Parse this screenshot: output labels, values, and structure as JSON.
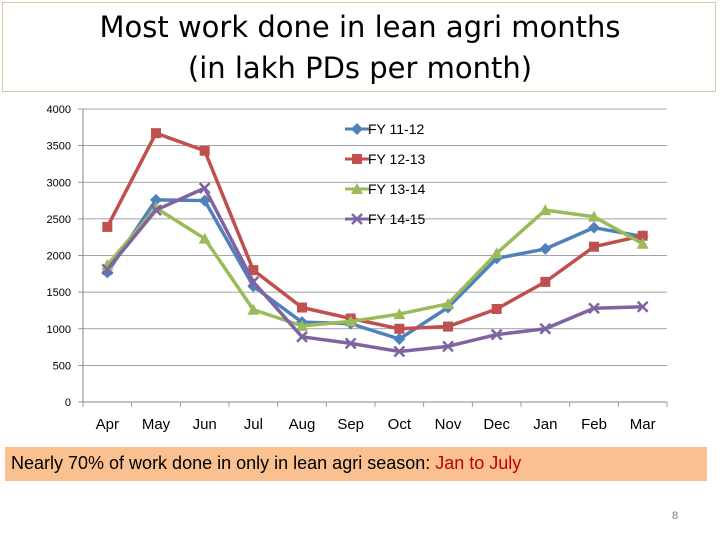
{
  "title": {
    "line1": "Most work done in lean agri months",
    "line2": "(in lakh PDs per month)"
  },
  "chart_data": {
    "type": "line",
    "title": "Most work done in lean agri months (in lakh PDs per month)",
    "xlabel": "",
    "ylabel": "",
    "categories": [
      "Apr",
      "May",
      "Jun",
      "Jul",
      "Aug",
      "Sep",
      "Oct",
      "Nov",
      "Dec",
      "Jan",
      "Feb",
      "Mar"
    ],
    "ylim": [
      0,
      4000
    ],
    "yticks": [
      0,
      500,
      1000,
      1500,
      2000,
      2500,
      3000,
      3500,
      4000
    ],
    "grid": true,
    "legend_position": "top-right",
    "series": [
      {
        "name": "FY 11-12",
        "color": "#4f81bd",
        "marker": "diamond",
        "values": [
          1770,
          2760,
          2750,
          1580,
          1090,
          1070,
          860,
          1290,
          1960,
          2090,
          2380,
          2260
        ]
      },
      {
        "name": "FY 12-13",
        "color": "#c0504d",
        "marker": "square",
        "values": [
          2390,
          3670,
          3430,
          1800,
          1290,
          1140,
          1000,
          1030,
          1270,
          1640,
          2120,
          2270
        ]
      },
      {
        "name": "FY 13-14",
        "color": "#9bbb59",
        "marker": "triangle",
        "values": [
          1870,
          2650,
          2230,
          1260,
          1040,
          1100,
          1200,
          1340,
          2030,
          2620,
          2530,
          2160
        ]
      },
      {
        "name": "FY 14-15",
        "color": "#8064a2",
        "marker": "x",
        "values": [
          1810,
          2620,
          2920,
          1640,
          890,
          800,
          690,
          760,
          920,
          1000,
          1280,
          1300
        ]
      }
    ]
  },
  "banner": {
    "text": "Nearly 70% of work done in only in lean agri season: ",
    "highlight": "Jan to July",
    "bg_color": "#fac090",
    "highlight_color": "#c00000"
  },
  "page_number": "8"
}
